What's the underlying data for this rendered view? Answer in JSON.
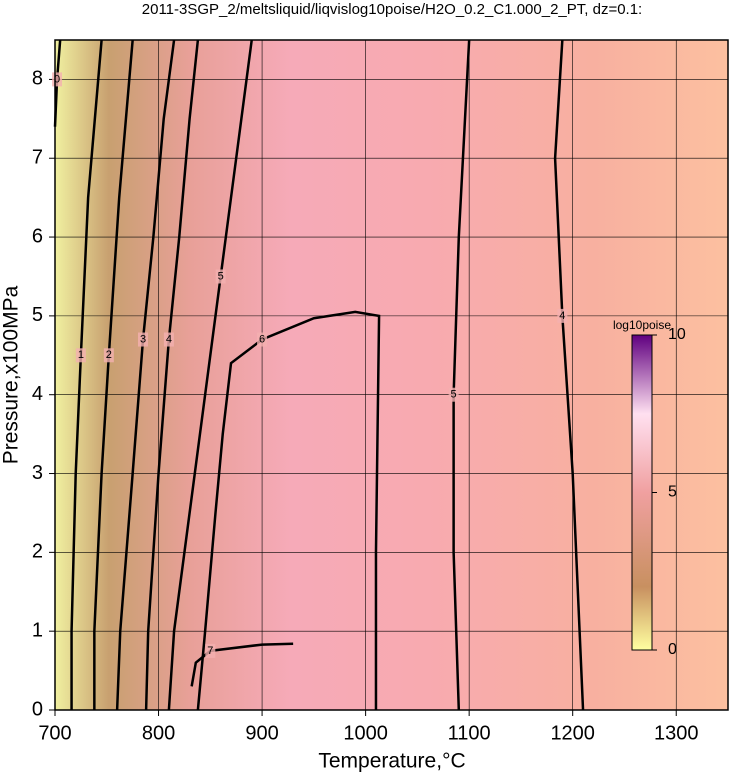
{
  "chart_data": {
    "type": "contour",
    "title": "2011-3SGP_2/meltsliquid/liqvislog10poise/H2O_0.2_C1.000_2_PT, dz=0.1:",
    "x_label": "Temperature,°C",
    "y_label": "Pressure,x100MPa",
    "xlim": [
      700,
      1350
    ],
    "ylim": [
      0,
      8.5
    ],
    "xticks": [
      700,
      800,
      900,
      1000,
      1100,
      1200,
      1300
    ],
    "yticks": [
      0,
      1,
      2,
      3,
      4,
      5,
      6,
      7,
      8
    ],
    "grid": true,
    "contours": [
      {
        "level": 0,
        "x": [
          700,
          702,
          705
        ],
        "y": [
          7.4,
          8.0,
          8.5
        ]
      },
      {
        "level": 1,
        "x": [
          716,
          716,
          720,
          725,
          732,
          745
        ],
        "y": [
          0,
          1,
          3,
          4.5,
          6.5,
          8.5
        ]
      },
      {
        "level": 2,
        "x": [
          738,
          738,
          745,
          752,
          762,
          775
        ],
        "y": [
          0,
          1,
          3,
          4.5,
          6.5,
          8.5
        ]
      },
      {
        "level": 3,
        "x": [
          760,
          763,
          775,
          785,
          795,
          805,
          815
        ],
        "y": [
          0,
          1,
          3,
          4.7,
          6,
          7.5,
          8.5
        ]
      },
      {
        "level": 4,
        "x": [
          788,
          790,
          800,
          810,
          820,
          830,
          838
        ],
        "y": [
          0,
          1,
          3,
          4.7,
          6,
          7.5,
          8.5
        ]
      },
      {
        "level": 5,
        "x": [
          810,
          815,
          830,
          845,
          860,
          870,
          880,
          890
        ],
        "y": [
          0,
          1,
          2.5,
          4,
          5.5,
          6.5,
          7.5,
          8.5
        ]
      },
      {
        "level": 6,
        "x": [
          838,
          845,
          855,
          862,
          870,
          900,
          950,
          990,
          1013,
          1010,
          1010
        ],
        "y": [
          0,
          1,
          2.5,
          3.5,
          4.4,
          4.7,
          4.97,
          5.05,
          5.0,
          2,
          0
        ]
      },
      {
        "level": 7,
        "x": [
          832,
          836,
          850,
          900,
          930
        ],
        "y": [
          0.3,
          0.6,
          0.75,
          0.83,
          0.84
        ]
      },
      {
        "level": 5,
        "x": [
          1090,
          1085,
          1085,
          1090,
          1100
        ],
        "y": [
          0,
          2,
          4,
          6,
          8.5
        ]
      },
      {
        "level": 4,
        "x": [
          1210,
          1200,
          1190,
          1183,
          1190
        ],
        "y": [
          0,
          3,
          5,
          7,
          8.5
        ]
      }
    ],
    "colorbar": {
      "title": "log10poise",
      "lim": [
        0,
        10
      ],
      "ticks": [
        0,
        5,
        10
      ]
    }
  }
}
